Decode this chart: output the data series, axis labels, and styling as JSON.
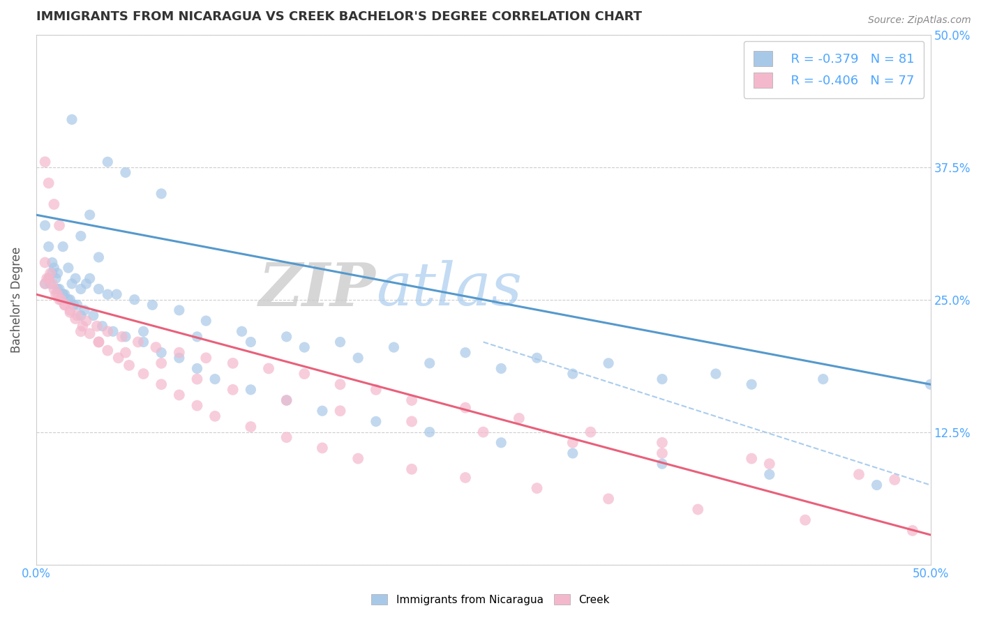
{
  "title": "IMMIGRANTS FROM NICARAGUA VS CREEK BACHELOR'S DEGREE CORRELATION CHART",
  "source_text": "Source: ZipAtlas.com",
  "ylabel": "Bachelor's Degree",
  "xlim": [
    0.0,
    0.5
  ],
  "ylim": [
    0.0,
    0.5
  ],
  "xticks": [
    0.0,
    0.05,
    0.1,
    0.15,
    0.2,
    0.25,
    0.3,
    0.35,
    0.4,
    0.45,
    0.5
  ],
  "yticks": [
    0.0,
    0.125,
    0.25,
    0.375,
    0.5
  ],
  "xtick_labels": [
    "0.0%",
    "",
    "",
    "",
    "",
    "",
    "",
    "",
    "",
    "",
    "50.0%"
  ],
  "ytick_labels_left": [
    "",
    "",
    "",
    "",
    ""
  ],
  "ytick_labels_right": [
    "",
    "12.5%",
    "25.0%",
    "37.5%",
    "50.0%"
  ],
  "legend_r1": "R = -0.379",
  "legend_n1": "N = 81",
  "legend_r2": "R = -0.406",
  "legend_n2": "N = 77",
  "color_blue": "#a8c8e8",
  "color_pink": "#f4b8cc",
  "color_blue_line": "#5599cc",
  "color_pink_line": "#e8607a",
  "color_dashed": "#aaccee",
  "axis_label_color": "#4da6ff",
  "background_color": "#ffffff",
  "watermark_zip": "ZIP",
  "watermark_atlas": "atlas",
  "blue_scatter_x": [
    0.02,
    0.04,
    0.03,
    0.05,
    0.07,
    0.035,
    0.025,
    0.015,
    0.01,
    0.008,
    0.012,
    0.02,
    0.03,
    0.015,
    0.025,
    0.04,
    0.018,
    0.022,
    0.028,
    0.035,
    0.045,
    0.055,
    0.065,
    0.08,
    0.095,
    0.115,
    0.14,
    0.17,
    0.2,
    0.24,
    0.28,
    0.32,
    0.38,
    0.44,
    0.5,
    0.06,
    0.09,
    0.12,
    0.15,
    0.18,
    0.22,
    0.26,
    0.3,
    0.35,
    0.4,
    0.005,
    0.007,
    0.009,
    0.011,
    0.013,
    0.016,
    0.019,
    0.023,
    0.027,
    0.032,
    0.037,
    0.043,
    0.05,
    0.06,
    0.07,
    0.08,
    0.09,
    0.1,
    0.12,
    0.14,
    0.16,
    0.19,
    0.22,
    0.26,
    0.3,
    0.35,
    0.41,
    0.47,
    0.005,
    0.007,
    0.009,
    0.012,
    0.015,
    0.018,
    0.021,
    0.025
  ],
  "blue_scatter_y": [
    0.42,
    0.38,
    0.33,
    0.37,
    0.35,
    0.29,
    0.31,
    0.3,
    0.28,
    0.265,
    0.275,
    0.265,
    0.27,
    0.255,
    0.26,
    0.255,
    0.28,
    0.27,
    0.265,
    0.26,
    0.255,
    0.25,
    0.245,
    0.24,
    0.23,
    0.22,
    0.215,
    0.21,
    0.205,
    0.2,
    0.195,
    0.19,
    0.18,
    0.175,
    0.17,
    0.22,
    0.215,
    0.21,
    0.205,
    0.195,
    0.19,
    0.185,
    0.18,
    0.175,
    0.17,
    0.32,
    0.3,
    0.285,
    0.27,
    0.26,
    0.255,
    0.25,
    0.245,
    0.24,
    0.235,
    0.225,
    0.22,
    0.215,
    0.21,
    0.2,
    0.195,
    0.185,
    0.175,
    0.165,
    0.155,
    0.145,
    0.135,
    0.125,
    0.115,
    0.105,
    0.095,
    0.085,
    0.075,
    0.265,
    0.27,
    0.275,
    0.26,
    0.255,
    0.25,
    0.245,
    0.235
  ],
  "pink_scatter_x": [
    0.005,
    0.007,
    0.009,
    0.011,
    0.013,
    0.016,
    0.019,
    0.023,
    0.028,
    0.034,
    0.04,
    0.048,
    0.057,
    0.067,
    0.08,
    0.095,
    0.11,
    0.13,
    0.15,
    0.17,
    0.19,
    0.21,
    0.24,
    0.27,
    0.31,
    0.35,
    0.4,
    0.46,
    0.005,
    0.006,
    0.008,
    0.01,
    0.012,
    0.014,
    0.016,
    0.019,
    0.022,
    0.026,
    0.03,
    0.035,
    0.04,
    0.046,
    0.052,
    0.06,
    0.07,
    0.08,
    0.09,
    0.1,
    0.12,
    0.14,
    0.16,
    0.18,
    0.21,
    0.24,
    0.28,
    0.32,
    0.37,
    0.43,
    0.49,
    0.025,
    0.035,
    0.05,
    0.07,
    0.09,
    0.11,
    0.14,
    0.17,
    0.21,
    0.25,
    0.3,
    0.35,
    0.41,
    0.48,
    0.005,
    0.007,
    0.01,
    0.013
  ],
  "pink_scatter_y": [
    0.285,
    0.27,
    0.265,
    0.255,
    0.25,
    0.245,
    0.24,
    0.235,
    0.23,
    0.225,
    0.22,
    0.215,
    0.21,
    0.205,
    0.2,
    0.195,
    0.19,
    0.185,
    0.18,
    0.17,
    0.165,
    0.155,
    0.148,
    0.138,
    0.125,
    0.115,
    0.1,
    0.085,
    0.265,
    0.27,
    0.275,
    0.26,
    0.255,
    0.25,
    0.245,
    0.238,
    0.232,
    0.225,
    0.218,
    0.21,
    0.202,
    0.195,
    0.188,
    0.18,
    0.17,
    0.16,
    0.15,
    0.14,
    0.13,
    0.12,
    0.11,
    0.1,
    0.09,
    0.082,
    0.072,
    0.062,
    0.052,
    0.042,
    0.032,
    0.22,
    0.21,
    0.2,
    0.19,
    0.175,
    0.165,
    0.155,
    0.145,
    0.135,
    0.125,
    0.115,
    0.105,
    0.095,
    0.08,
    0.38,
    0.36,
    0.34,
    0.32
  ],
  "blue_line_x0": 0.0,
  "blue_line_x1": 0.5,
  "blue_line_y0": 0.33,
  "blue_line_y1": 0.17,
  "pink_line_x0": 0.0,
  "pink_line_x1": 0.5,
  "pink_line_y0": 0.255,
  "pink_line_y1": 0.028,
  "dash_line_x0": 0.25,
  "dash_line_x1": 0.5,
  "dash_line_y0": 0.21,
  "dash_line_y1": 0.075
}
